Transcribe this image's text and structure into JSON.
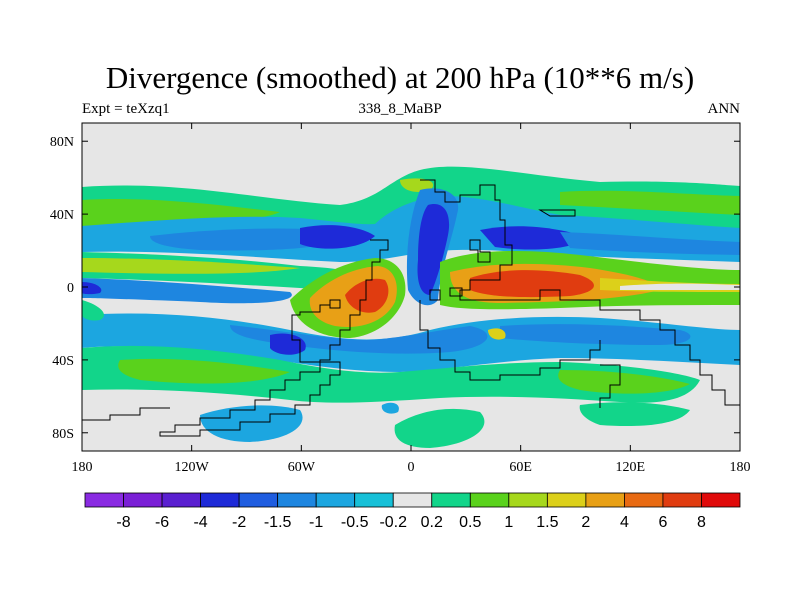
{
  "chart_data": {
    "type": "heatmap",
    "title": "Divergence (smoothed) at 200 hPa (10**6 m/s)",
    "subtitle_left": "Expt = teXzq1",
    "subtitle_center": "338_8_MaBP",
    "subtitle_right": "ANN",
    "x_ticks": [
      "180",
      "120W",
      "60W",
      "0",
      "60E",
      "120E",
      "180"
    ],
    "x_tick_values": [
      -180,
      -120,
      -60,
      0,
      60,
      120,
      180
    ],
    "y_ticks": [
      "80N",
      "40N",
      "0",
      "40S",
      "80S"
    ],
    "y_tick_values": [
      80,
      40,
      0,
      -40,
      -80
    ],
    "xlim": [
      -180,
      180
    ],
    "ylim": [
      -90,
      90
    ],
    "colorbar": {
      "levels": [
        "-8",
        "-6",
        "-4",
        "-2",
        "-1.5",
        "-1",
        "-0.5",
        "-0.2",
        "0.2",
        "0.5",
        "1",
        "1.5",
        "2",
        "4",
        "6",
        "8"
      ],
      "colors": [
        "#8a2be2",
        "#7a1fd6",
        "#5a1fd0",
        "#1e2ad8",
        "#1f5de0",
        "#1e86e0",
        "#1ca6e0",
        "#17c0d8",
        "#e6e6e6",
        "#12d58a",
        "#5ad21c",
        "#a6d81c",
        "#dcd01a",
        "#e8a016",
        "#e86a12",
        "#e03c10",
        "#e00a0a"
      ]
    },
    "features": [
      {
        "name": "nh-jet-north-green",
        "value": 0.5,
        "lat_range": [
          30,
          55
        ],
        "lon_range": [
          -180,
          180
        ]
      },
      {
        "name": "equatorial-convergence-blue",
        "value": -1.5,
        "lat_range": [
          5,
          40
        ],
        "lon_range": [
          -130,
          80
        ]
      },
      {
        "name": "atlantic-divergence-red",
        "value": 4,
        "lat_range": [
          -25,
          15
        ],
        "lon_range": [
          -60,
          -15
        ]
      },
      {
        "name": "indian-ocean-divergence-red",
        "value": 4,
        "lat_range": [
          -20,
          15
        ],
        "lon_range": [
          20,
          110
        ]
      },
      {
        "name": "sh-convergence-blue",
        "value": -1,
        "lat_range": [
          -50,
          -20
        ],
        "lon_range": [
          -150,
          160
        ]
      },
      {
        "name": "sh-divergence-green",
        "value": 0.5,
        "lat_range": [
          -75,
          -40
        ],
        "lon_range": [
          -180,
          150
        ]
      }
    ]
  }
}
